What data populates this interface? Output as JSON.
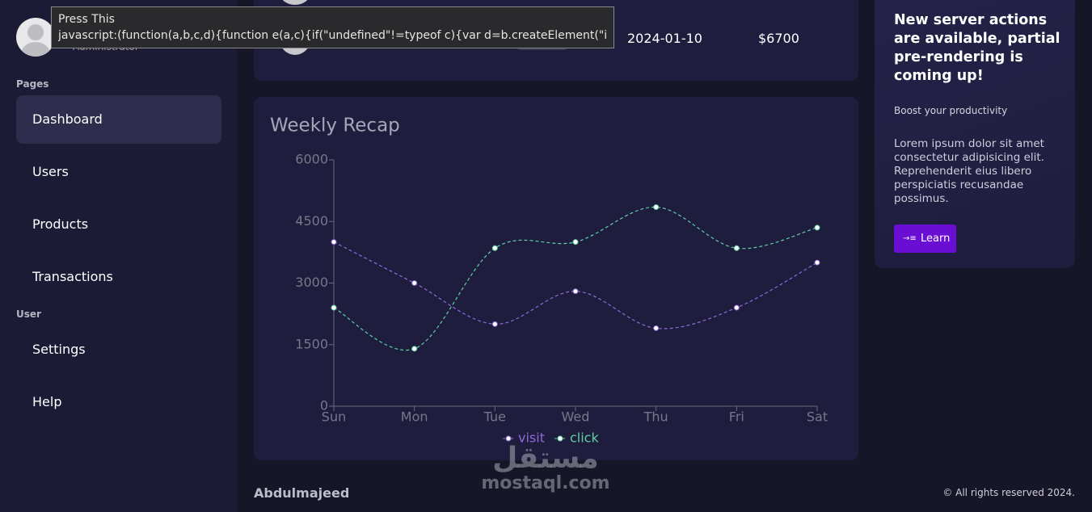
{
  "tooltip": {
    "title": "Press This",
    "text": "javascript:(function(a,b,c,d){function e(a,c){if(\"undefined\"!=typeof c){var d=b.createElement(\"inpu…"
  },
  "sidebar": {
    "role": "Administrator",
    "sections": [
      {
        "label": "Pages",
        "items": [
          "Dashboard",
          "Users",
          "Products",
          "Transactions"
        ]
      },
      {
        "label": "User",
        "items": [
          "Settings",
          "Help"
        ]
      }
    ]
  },
  "table": {
    "rows": [
      [
        "2024-01-10",
        "$6700"
      ]
    ]
  },
  "chart_data": {
    "type": "line",
    "title": "Weekly Recap",
    "categories": [
      "Sun",
      "Mon",
      "Tue",
      "Wed",
      "Thu",
      "Fri",
      "Sat"
    ],
    "series": [
      {
        "name": "visit",
        "color": "#8d6ad8",
        "values": [
          4000,
          3000,
          2000,
          2800,
          1900,
          2400,
          3500
        ]
      },
      {
        "name": "click",
        "color": "#5fd0a2",
        "values": [
          2400,
          1400,
          3850,
          4000,
          4850,
          3850,
          4350
        ]
      }
    ],
    "ylim": [
      0,
      6000
    ],
    "yticks": [
      0,
      1500,
      3000,
      4500,
      6000
    ],
    "smooth": true,
    "dashed": true,
    "legend": "bottom"
  },
  "promo": {
    "title": "New server actions are available, partial pre-rendering is coming up!",
    "subtitle": "Boost your productivity",
    "text": "Lorem ipsum dolor sit amet consectetur adipisicing elit. Reprehenderit eius libero perspiciatis recusandae possimus.",
    "button": "Learn"
  },
  "footer": {
    "author": "Abdulmajeed",
    "copyright": "© All rights reserved 2024."
  },
  "watermark": {
    "arabic": "مستقل",
    "latin": "mostaql.com"
  }
}
